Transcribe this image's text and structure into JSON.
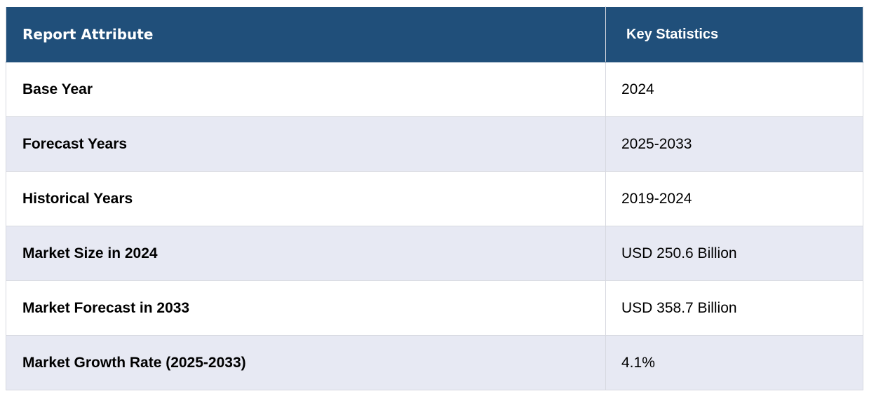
{
  "header": {
    "attribute_label": "Report Attribute",
    "statistics_label": "Key Statistics"
  },
  "rows": [
    {
      "attribute": "Base Year",
      "value": "2024"
    },
    {
      "attribute": "Forecast Years",
      "value": "2025-2033"
    },
    {
      "attribute": "Historical Years",
      "value": "2019-2024"
    },
    {
      "attribute": "Market Size in 2024",
      "value": "USD 250.6 Billion"
    },
    {
      "attribute": "Market Forecast in 2033",
      "value": "USD 358.7 Billion"
    },
    {
      "attribute": "Market Growth Rate (2025-2033)",
      "value": "4.1%"
    }
  ],
  "colors": {
    "header_bg": "#204f7a",
    "header_text": "#ffffff",
    "row_alt_bg": "#e7e9f3",
    "row_bg": "#ffffff",
    "border": "#d7d9e0"
  }
}
